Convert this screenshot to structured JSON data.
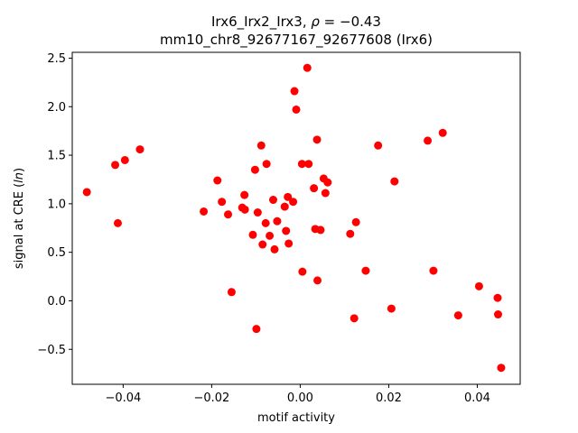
{
  "chart_data": {
    "type": "scatter",
    "title_line1_prefix": "Irx6_Irx2_Irx3, ",
    "title_line1_rho": "ρ",
    "title_line1_suffix": " = −0.43",
    "title_line2": "mm10_chr8_92677167_92677608 (Irx6)",
    "xlabel": "motif activity",
    "ylabel_prefix": "signal at CRE (",
    "ylabel_italic": "ln",
    "ylabel_suffix": ")",
    "xlim": [
      -0.0515,
      0.0497
    ],
    "ylim": [
      -0.86,
      2.56
    ],
    "xticks": [
      -0.04,
      -0.02,
      0.0,
      0.02,
      0.04
    ],
    "xtick_labels": [
      "−0.04",
      "−0.02",
      "0.00",
      "0.02",
      "0.04"
    ],
    "yticks": [
      -0.5,
      0.0,
      0.5,
      1.0,
      1.5,
      2.0,
      2.5
    ],
    "ytick_labels": [
      "−0.5",
      "0.0",
      "0.5",
      "1.0",
      "1.5",
      "2.0",
      "2.5"
    ],
    "grid": false,
    "marker_color": "#ff0000",
    "points": {
      "x": [
        -0.0482,
        -0.0418,
        -0.0412,
        -0.0396,
        -0.0362,
        -0.0218,
        -0.0187,
        -0.0177,
        -0.0163,
        -0.0155,
        -0.0131,
        -0.0126,
        -0.0125,
        -0.0107,
        -0.0102,
        -0.0099,
        -0.0096,
        -0.0088,
        -0.0085,
        -0.0078,
        -0.0076,
        -0.0069,
        -0.0061,
        -0.0058,
        -0.0052,
        -0.0035,
        -0.0032,
        -0.0028,
        -0.0026,
        -0.0016,
        -0.0013,
        -0.0009,
        0.0004,
        0.0005,
        0.0016,
        0.0019,
        0.0031,
        0.0034,
        0.0038,
        0.0039,
        0.0046,
        0.0053,
        0.0057,
        0.0062,
        0.0113,
        0.0122,
        0.0126,
        0.0148,
        0.0176,
        0.0206,
        0.0213,
        0.0288,
        0.0301,
        0.0322,
        0.0357,
        0.0404,
        0.0446,
        0.0447,
        0.0454
      ],
      "y": [
        1.12,
        1.4,
        0.8,
        1.45,
        1.56,
        0.92,
        1.24,
        1.02,
        0.89,
        0.09,
        0.96,
        1.09,
        0.94,
        0.68,
        1.35,
        -0.29,
        0.91,
        1.6,
        0.58,
        0.8,
        1.41,
        0.67,
        1.04,
        0.53,
        0.82,
        0.97,
        0.72,
        1.07,
        0.59,
        1.02,
        2.16,
        1.97,
        1.41,
        0.3,
        2.4,
        1.41,
        1.16,
        0.74,
        1.66,
        0.21,
        0.73,
        1.26,
        1.11,
        1.22,
        0.69,
        -0.18,
        0.81,
        0.31,
        1.6,
        -0.08,
        1.23,
        1.65,
        0.31,
        1.73,
        -0.15,
        0.15,
        0.03,
        -0.14,
        -0.69
      ]
    }
  }
}
